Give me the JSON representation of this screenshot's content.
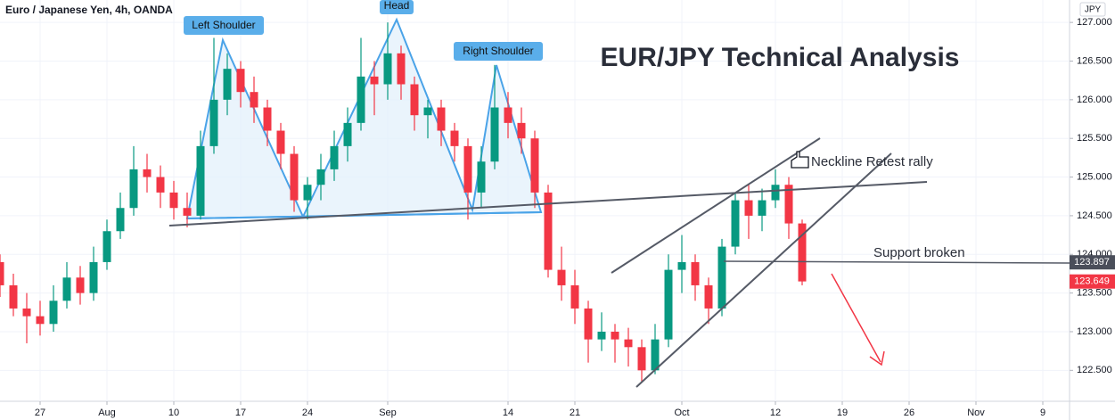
{
  "chart_data": {
    "type": "candlestick",
    "header": "Euro / Japanese Yen, 4h, OANDA",
    "currency": "JPY",
    "title": "EUR/JPY Technical Analysis",
    "annotations": [
      "Left Shoulder",
      "Head",
      "Right Shoulder",
      "Neckline Retest rally",
      "Support broken"
    ],
    "up_color": "#089981",
    "down_color": "#f23645",
    "x": [
      -3,
      -2,
      -1,
      0,
      1,
      2,
      3,
      4,
      5,
      6,
      7,
      8,
      9,
      10,
      11,
      12,
      13,
      14,
      15,
      16,
      17,
      18,
      19,
      20,
      21,
      22,
      23,
      24,
      25,
      26,
      27,
      28,
      29,
      30,
      31,
      32,
      33,
      34,
      35,
      36,
      37,
      38,
      39,
      40,
      41,
      42,
      43,
      44,
      45,
      46,
      47,
      48,
      49,
      50,
      51,
      52,
      53,
      54,
      55,
      56,
      57
    ],
    "ohlc": [
      [
        123.9,
        124.0,
        123.45,
        123.6
      ],
      [
        123.6,
        123.75,
        123.2,
        123.3
      ],
      [
        123.3,
        123.5,
        122.85,
        123.2
      ],
      [
        123.2,
        123.4,
        122.95,
        123.1
      ],
      [
        123.1,
        123.6,
        123.0,
        123.4
      ],
      [
        123.4,
        123.9,
        123.3,
        123.7
      ],
      [
        123.7,
        123.85,
        123.35,
        123.5
      ],
      [
        123.5,
        124.1,
        123.4,
        123.9
      ],
      [
        123.9,
        124.45,
        123.8,
        124.3
      ],
      [
        124.3,
        124.8,
        124.2,
        124.6
      ],
      [
        124.6,
        125.4,
        124.5,
        125.1
      ],
      [
        125.1,
        125.3,
        124.8,
        125.0
      ],
      [
        125.0,
        125.15,
        124.6,
        124.8
      ],
      [
        124.8,
        124.95,
        124.45,
        124.6
      ],
      [
        124.6,
        124.8,
        124.35,
        124.5
      ],
      [
        124.5,
        125.6,
        124.45,
        125.4
      ],
      [
        125.4,
        126.8,
        125.3,
        126.0
      ],
      [
        126.0,
        126.6,
        125.8,
        126.4
      ],
      [
        126.4,
        126.5,
        125.9,
        126.1
      ],
      [
        126.1,
        126.3,
        125.7,
        125.9
      ],
      [
        125.9,
        126.0,
        125.4,
        125.6
      ],
      [
        125.6,
        125.7,
        125.1,
        125.3
      ],
      [
        125.3,
        125.4,
        124.55,
        124.7
      ],
      [
        124.7,
        125.0,
        124.45,
        124.9
      ],
      [
        124.9,
        125.3,
        124.7,
        125.1
      ],
      [
        125.1,
        125.6,
        124.95,
        125.4
      ],
      [
        125.4,
        125.9,
        125.2,
        125.7
      ],
      [
        125.7,
        126.8,
        125.6,
        126.3
      ],
      [
        126.3,
        126.5,
        125.8,
        126.2
      ],
      [
        126.2,
        127.0,
        126.0,
        126.6
      ],
      [
        126.6,
        126.7,
        126.0,
        126.2
      ],
      [
        126.2,
        126.3,
        125.6,
        125.8
      ],
      [
        125.8,
        126.0,
        125.5,
        125.9
      ],
      [
        125.9,
        126.0,
        125.4,
        125.6
      ],
      [
        125.6,
        125.7,
        125.2,
        125.4
      ],
      [
        125.4,
        125.5,
        124.45,
        124.8
      ],
      [
        124.8,
        125.4,
        124.6,
        125.2
      ],
      [
        125.2,
        126.45,
        125.1,
        125.9
      ],
      [
        125.9,
        126.1,
        125.5,
        125.7
      ],
      [
        125.7,
        125.9,
        125.3,
        125.5
      ],
      [
        125.5,
        125.6,
        124.6,
        124.8
      ],
      [
        124.8,
        124.9,
        123.7,
        123.8
      ],
      [
        123.8,
        124.1,
        123.4,
        123.6
      ],
      [
        123.6,
        123.8,
        123.1,
        123.3
      ],
      [
        123.3,
        123.4,
        122.6,
        122.9
      ],
      [
        122.9,
        123.25,
        122.75,
        123.0
      ],
      [
        123.0,
        123.1,
        122.6,
        122.9
      ],
      [
        122.9,
        123.05,
        122.55,
        122.8
      ],
      [
        122.8,
        122.9,
        122.35,
        122.5
      ],
      [
        122.5,
        123.1,
        122.45,
        122.9
      ],
      [
        122.9,
        124.0,
        122.8,
        123.8
      ],
      [
        123.8,
        124.25,
        123.5,
        123.9
      ],
      [
        123.9,
        124.0,
        123.4,
        123.6
      ],
      [
        123.6,
        123.7,
        123.1,
        123.3
      ],
      [
        123.3,
        124.2,
        123.2,
        124.1
      ],
      [
        124.1,
        124.8,
        124.0,
        124.7
      ],
      [
        124.7,
        124.9,
        124.2,
        124.5
      ],
      [
        124.5,
        124.85,
        124.3,
        124.7
      ],
      [
        124.7,
        125.1,
        124.6,
        124.9
      ],
      [
        124.9,
        125.0,
        124.2,
        124.4
      ],
      [
        124.4,
        124.45,
        123.6,
        123.65
      ]
    ],
    "xlim": [
      -3,
      77
    ],
    "xticks": [
      {
        "value": 0,
        "label": "27"
      },
      {
        "value": 5,
        "label": "Aug"
      },
      {
        "value": 10,
        "label": "10"
      },
      {
        "value": 15,
        "label": "17"
      },
      {
        "value": 20,
        "label": "24"
      },
      {
        "value": 26,
        "label": "Sep"
      },
      {
        "value": 35,
        "label": "14"
      },
      {
        "value": 40,
        "label": "21"
      },
      {
        "value": 48,
        "label": "Oct"
      },
      {
        "value": 55,
        "label": "12"
      },
      {
        "value": 60,
        "label": "19"
      },
      {
        "value": 65,
        "label": "26"
      },
      {
        "value": 70,
        "label": "Nov"
      },
      {
        "value": 75,
        "label": "9"
      }
    ],
    "ylim": [
      122.1,
      127.29
    ],
    "yticks": [
      {
        "value": 122.5,
        "label": "122.500"
      },
      {
        "value": 123,
        "label": "123.000"
      },
      {
        "value": 123.5,
        "label": "123.500"
      },
      {
        "value": 124,
        "label": "124.000"
      },
      {
        "value": 124.5,
        "label": "124.500"
      },
      {
        "value": 125,
        "label": "125.000"
      },
      {
        "value": 125.5,
        "label": "125.500"
      },
      {
        "value": 126,
        "label": "126.000"
      },
      {
        "value": 126.5,
        "label": "126.500"
      },
      {
        "value": 127,
        "label": "127.000"
      }
    ],
    "price_markers": [
      {
        "value": 123.897,
        "color": "#4a4e5a"
      },
      {
        "value": 123.649,
        "color": "#f23645"
      }
    ]
  }
}
